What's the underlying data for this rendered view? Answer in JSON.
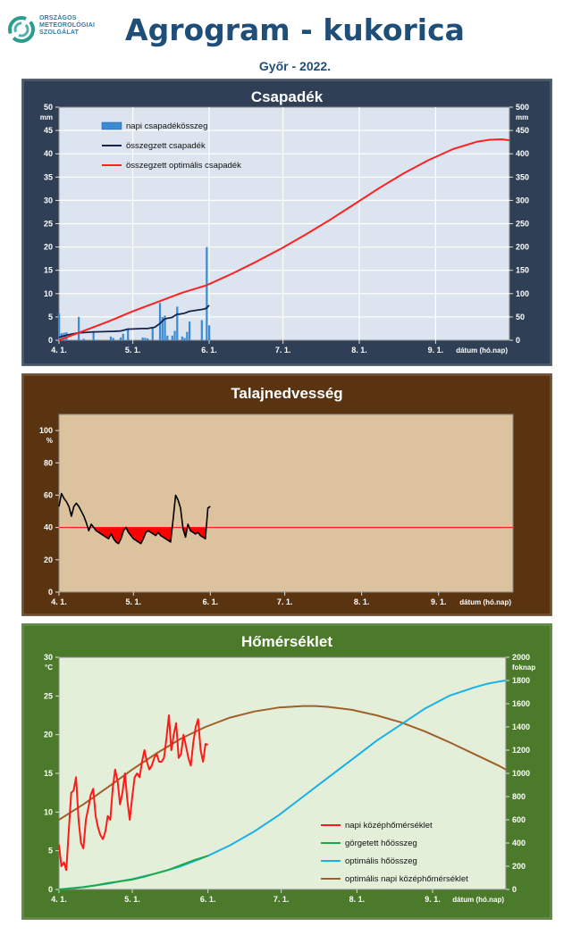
{
  "header": {
    "title": "Agrogram - kukorica",
    "subtitle": "Győr - 2022.",
    "logo_lines": [
      "ORSZÁGOS",
      "METEOROLÓGIAI",
      "SZOLGÁLAT"
    ]
  },
  "colors": {
    "panel1_bg": "#2f3f56",
    "panel2_bg": "#5a3410",
    "panel3_bg": "#4a7a2a",
    "plot1_bg": "#dbe4ef",
    "plot2_bg": "#dcc39e",
    "plot3_bg": "#e4efd9"
  },
  "chart_data": [
    {
      "type": "bar",
      "title": "Csapadék",
      "ylabel": "mm",
      "y2label": "mm",
      "xlabel": "dátum (hó.nap)",
      "xlim": [
        0,
        183
      ],
      "x_ticks": [
        0,
        30,
        61,
        91,
        122,
        153
      ],
      "x_tick_labels": [
        "4. 1.",
        "5. 1.",
        "6. 1.",
        "7. 1.",
        "8. 1.",
        "9. 1."
      ],
      "ylim": [
        0,
        50
      ],
      "y_ticks": [
        0,
        5,
        10,
        15,
        20,
        25,
        30,
        35,
        40,
        45,
        50
      ],
      "y2lim": [
        0,
        500
      ],
      "y2_ticks": [
        0,
        50,
        100,
        150,
        200,
        250,
        300,
        350,
        400,
        450,
        500
      ],
      "grid": true,
      "legend_position": "top-left",
      "series": [
        {
          "name": "napi csapadékösszeg",
          "kind": "bar",
          "axis": "left",
          "color": "#3a8ad4",
          "x": [
            0,
            1,
            2,
            3,
            8,
            10,
            14,
            21,
            22,
            25,
            26,
            28,
            34,
            35,
            36,
            38,
            41,
            42,
            43,
            44,
            46,
            47,
            48,
            50,
            51,
            52,
            53,
            58,
            60,
            61
          ],
          "values": [
            5.8,
            1.5,
            1.6,
            1.7,
            5.0,
            0.3,
            1.7,
            0.8,
            0.5,
            0.6,
            1.4,
            2.5,
            0.6,
            0.5,
            0.4,
            2.6,
            8.0,
            5.0,
            5.3,
            1.0,
            1.0,
            2.0,
            7.2,
            0.8,
            0.5,
            1.8,
            4.0,
            4.3,
            20.0,
            3.2
          ]
        },
        {
          "name": "összegzett csapadék",
          "kind": "line",
          "axis": "right",
          "color": "#17234f",
          "x": [
            0,
            1,
            2,
            3,
            8,
            9,
            14,
            15,
            21,
            22,
            25,
            26,
            28,
            29,
            34,
            36,
            38,
            39,
            41,
            43,
            44,
            46,
            48,
            49,
            51,
            53,
            58,
            59,
            60,
            61
          ],
          "values": [
            6,
            8,
            9,
            11,
            16,
            16,
            18,
            18,
            19,
            19,
            20,
            21,
            24,
            24,
            25,
            25,
            27,
            28,
            36,
            46,
            47,
            49,
            56,
            56,
            58,
            62,
            66,
            67,
            69,
            75
          ]
        },
        {
          "name": "összegzett optimális  csapadék",
          "kind": "line",
          "axis": "right",
          "color": "#ff2020",
          "x": [
            0,
            10,
            20,
            30,
            40,
            50,
            60,
            70,
            80,
            90,
            100,
            110,
            120,
            130,
            140,
            150,
            160,
            170,
            175,
            180,
            183
          ],
          "values": [
            0,
            20,
            40,
            62,
            82,
            102,
            118,
            142,
            168,
            196,
            226,
            258,
            292,
            326,
            358,
            386,
            410,
            426,
            430,
            431,
            429
          ]
        }
      ]
    },
    {
      "type": "line",
      "title": "Talajnedvesség",
      "ylabel": "%",
      "xlabel": "dátum (hó.nap)",
      "xlim": [
        0,
        183
      ],
      "x_ticks": [
        0,
        30,
        61,
        91,
        122,
        153
      ],
      "x_tick_labels": [
        "4. 1.",
        "5. 1.",
        "6. 1.",
        "7. 1.",
        "8. 1.",
        "9. 1."
      ],
      "ylim": [
        0,
        110
      ],
      "y_ticks": [
        0,
        20,
        40,
        60,
        80,
        100
      ],
      "grid": false,
      "threshold": 40,
      "threshold_color": "#ff2020",
      "deficit_fill_color": "#ff0000",
      "series": [
        {
          "name": "",
          "color": "#000000",
          "x": [
            0,
            1,
            2,
            3,
            4,
            5,
            6,
            7,
            8,
            9,
            10,
            11,
            12,
            13,
            14,
            15,
            16,
            17,
            18,
            19,
            20,
            21,
            22,
            23,
            24,
            25,
            26,
            27,
            28,
            29,
            30,
            31,
            32,
            33,
            34,
            35,
            36,
            37,
            38,
            39,
            40,
            41,
            42,
            43,
            44,
            45,
            46,
            47,
            48,
            49,
            50,
            51,
            52,
            53,
            54,
            55,
            56,
            57,
            58,
            59,
            60,
            61
          ],
          "values": [
            53,
            61,
            58,
            56,
            53,
            47,
            53,
            55,
            53,
            50,
            47,
            43,
            38,
            42,
            40,
            38,
            37,
            36,
            35,
            34,
            33,
            36,
            33,
            31,
            30,
            33,
            38,
            40,
            37,
            35,
            33,
            32,
            31,
            30,
            33,
            37,
            38,
            37,
            36,
            35,
            37,
            35,
            34,
            33,
            32,
            31,
            45,
            60,
            57,
            52,
            39,
            34,
            42,
            38,
            37,
            36,
            37,
            35,
            34,
            33,
            52,
            53
          ]
        }
      ]
    },
    {
      "type": "line",
      "title": "Hőmérséklet",
      "ylabel": "°C",
      "y2label": "foknap",
      "xlabel": "dátum (hó.nap)",
      "xlim": [
        0,
        183
      ],
      "x_ticks": [
        0,
        30,
        61,
        91,
        122,
        153
      ],
      "x_tick_labels": [
        "4. 1.",
        "5. 1.",
        "6. 1.",
        "7. 1.",
        "8. 1.",
        "9. 1."
      ],
      "ylim": [
        0,
        30
      ],
      "y_ticks": [
        0,
        5,
        10,
        15,
        20,
        25,
        30
      ],
      "y2lim": [
        0,
        2000
      ],
      "y2_ticks": [
        0,
        200,
        400,
        600,
        800,
        1000,
        1200,
        1400,
        1600,
        1800,
        2000
      ],
      "grid": false,
      "legend_position": "bottom-right",
      "series": [
        {
          "name": "napi középhőmérséklet",
          "axis": "left",
          "color": "#ff1a1a",
          "x": [
            0,
            1,
            2,
            3,
            4,
            5,
            6,
            7,
            8,
            9,
            10,
            11,
            12,
            13,
            14,
            15,
            16,
            17,
            18,
            19,
            20,
            21,
            22,
            23,
            24,
            25,
            26,
            27,
            28,
            29,
            30,
            31,
            32,
            33,
            34,
            35,
            36,
            37,
            38,
            39,
            40,
            41,
            42,
            43,
            44,
            45,
            46,
            47,
            48,
            49,
            50,
            51,
            52,
            53,
            54,
            55,
            56,
            57,
            58,
            59,
            60,
            61
          ],
          "values": [
            5.8,
            3.0,
            3.5,
            2.5,
            7.5,
            12.5,
            12.8,
            14.5,
            9.0,
            6.0,
            5.3,
            9.0,
            10.5,
            12.2,
            13.0,
            9.5,
            8.0,
            7.0,
            6.5,
            7.5,
            9.5,
            9.0,
            13.0,
            15.5,
            14.0,
            11.0,
            12.5,
            15.0,
            11.5,
            9.0,
            12.0,
            14.5,
            15.0,
            14.5,
            16.5,
            18.0,
            16.5,
            15.5,
            16.0,
            17.0,
            17.5,
            16.5,
            16.5,
            17.0,
            19.5,
            22.5,
            18.0,
            20.0,
            21.5,
            17.0,
            17.5,
            20.0,
            18.5,
            17.0,
            16.0,
            19.0,
            21.0,
            22.0,
            18.0,
            16.5,
            18.8,
            18.7
          ]
        },
        {
          "name": "görgetett hőösszeg",
          "axis": "right",
          "color": "#1aaa4a",
          "x": [
            0,
            5,
            10,
            15,
            20,
            25,
            30,
            35,
            40,
            45,
            50,
            55,
            61
          ],
          "values": [
            0,
            10,
            20,
            35,
            55,
            70,
            85,
            110,
            140,
            170,
            210,
            250,
            290
          ]
        },
        {
          "name": "optimális hőösszeg",
          "axis": "right",
          "color": "#1ab0e8",
          "x": [
            0,
            10,
            20,
            30,
            40,
            50,
            61,
            70,
            80,
            90,
            100,
            110,
            120,
            130,
            140,
            150,
            160,
            170,
            175,
            180,
            183
          ],
          "values": [
            0,
            20,
            50,
            90,
            140,
            200,
            290,
            380,
            500,
            640,
            800,
            960,
            1120,
            1280,
            1420,
            1560,
            1670,
            1740,
            1770,
            1790,
            1800
          ]
        },
        {
          "name": "optimális napi középhőmérséklet",
          "axis": "left",
          "color": "#a0602a",
          "x": [
            0,
            10,
            20,
            30,
            40,
            50,
            60,
            70,
            80,
            90,
            100,
            105,
            110,
            120,
            130,
            140,
            150,
            160,
            170,
            180,
            183
          ],
          "values": [
            9.0,
            11.0,
            13.2,
            15.5,
            17.6,
            19.5,
            21.0,
            22.2,
            23.0,
            23.5,
            23.7,
            23.7,
            23.6,
            23.2,
            22.5,
            21.6,
            20.4,
            19.0,
            17.5,
            16.0,
            15.5
          ]
        }
      ]
    }
  ]
}
